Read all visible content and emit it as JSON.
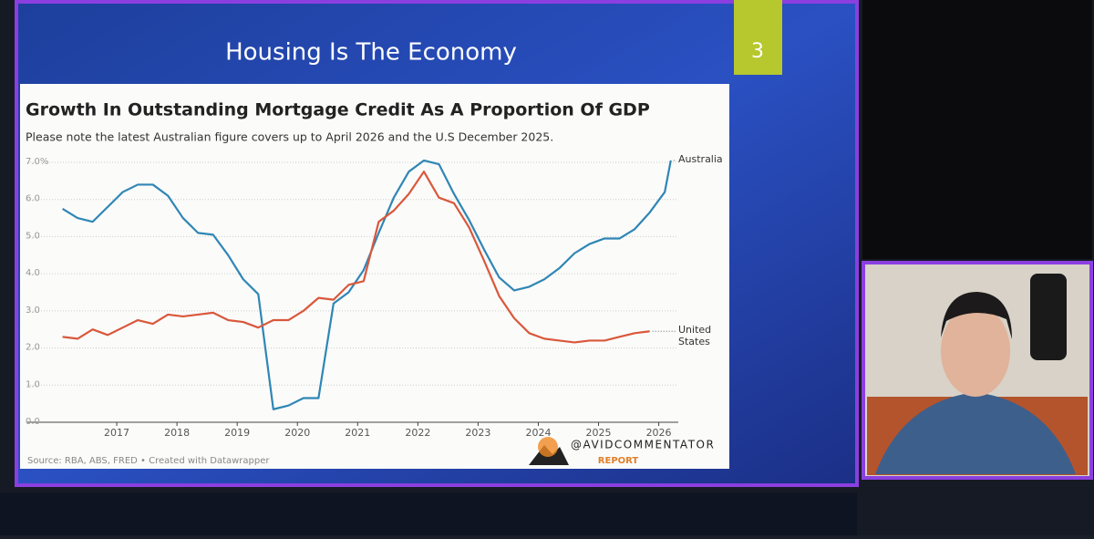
{
  "slide": {
    "title": "Housing Is The Economy",
    "number": "3"
  },
  "chart_data": {
    "type": "line",
    "title": "Growth In Outstanding Mortgage Credit As A Proportion Of GDP",
    "subtitle": "Please note the latest Australian figure covers up to April 2026 and the U.S December 2025.",
    "source": "Source: RBA, ABS, FRED • Created with Datawrapper",
    "xlim": [
      2016,
      2026.4
    ],
    "xticks": [
      2017,
      2018,
      2019,
      2020,
      2021,
      2022,
      2023,
      2024,
      2025,
      2026
    ],
    "ylim": [
      0,
      7
    ],
    "yticks": [
      {
        "value": 0,
        "label": "0.0"
      },
      {
        "value": 1,
        "label": "1.0"
      },
      {
        "value": 2,
        "label": "2.0"
      },
      {
        "value": 3,
        "label": "3.0"
      },
      {
        "value": 4,
        "label": "4.0"
      },
      {
        "value": 5,
        "label": "5.0"
      },
      {
        "value": 6,
        "label": "6.0"
      },
      {
        "value": 7,
        "label": "7.0%"
      }
    ],
    "grid": true,
    "series": [
      {
        "name": "Australia",
        "color": "#2f86b5",
        "x": [
          2016.1,
          2016.35,
          2016.6,
          2016.85,
          2017.1,
          2017.35,
          2017.6,
          2017.85,
          2018.1,
          2018.35,
          2018.6,
          2018.85,
          2019.1,
          2019.35,
          2019.6,
          2019.85,
          2020.1,
          2020.35,
          2020.6,
          2020.85,
          2021.1,
          2021.35,
          2021.6,
          2021.85,
          2022.1,
          2022.35,
          2022.6,
          2022.85,
          2023.1,
          2023.35,
          2023.6,
          2023.85,
          2024.1,
          2024.35,
          2024.6,
          2024.85,
          2025.1,
          2025.35,
          2025.6,
          2025.85,
          2026.1,
          2026.2
        ],
        "values": [
          5.75,
          5.5,
          5.4,
          5.8,
          6.2,
          6.4,
          6.4,
          6.1,
          5.5,
          5.1,
          5.05,
          4.5,
          3.85,
          3.45,
          0.35,
          0.45,
          0.65,
          0.65,
          3.2,
          3.5,
          4.1,
          5.1,
          6.05,
          6.75,
          7.05,
          6.95,
          6.15,
          5.45,
          4.65,
          3.9,
          3.55,
          3.65,
          3.85,
          4.15,
          4.55,
          4.8,
          4.95,
          4.95,
          5.2,
          5.65,
          6.2,
          7.05
        ]
      },
      {
        "name": "United States",
        "color": "#d9583b",
        "x": [
          2016.1,
          2016.35,
          2016.6,
          2016.85,
          2017.1,
          2017.35,
          2017.6,
          2017.85,
          2018.1,
          2018.35,
          2018.6,
          2018.85,
          2019.1,
          2019.35,
          2019.6,
          2019.85,
          2020.1,
          2020.35,
          2020.6,
          2020.85,
          2021.1,
          2021.35,
          2021.6,
          2021.85,
          2022.1,
          2022.35,
          2022.6,
          2022.85,
          2023.1,
          2023.35,
          2023.6,
          2023.85,
          2024.1,
          2024.35,
          2024.6,
          2024.85,
          2025.1,
          2025.35,
          2025.6,
          2025.85
        ],
        "values": [
          2.3,
          2.25,
          2.5,
          2.35,
          2.55,
          2.75,
          2.65,
          2.9,
          2.85,
          2.9,
          2.95,
          2.75,
          2.7,
          2.55,
          2.75,
          2.75,
          3.0,
          3.35,
          3.3,
          3.7,
          3.8,
          5.4,
          5.7,
          6.15,
          6.75,
          6.05,
          5.9,
          5.25,
          4.35,
          3.4,
          2.8,
          2.4,
          2.25,
          2.2,
          2.15,
          2.2,
          2.2,
          2.3,
          2.4,
          2.45
        ]
      }
    ]
  },
  "logo": {
    "handle": "@AVIDCOMMENTATOR",
    "subtitle": "REPORT"
  }
}
